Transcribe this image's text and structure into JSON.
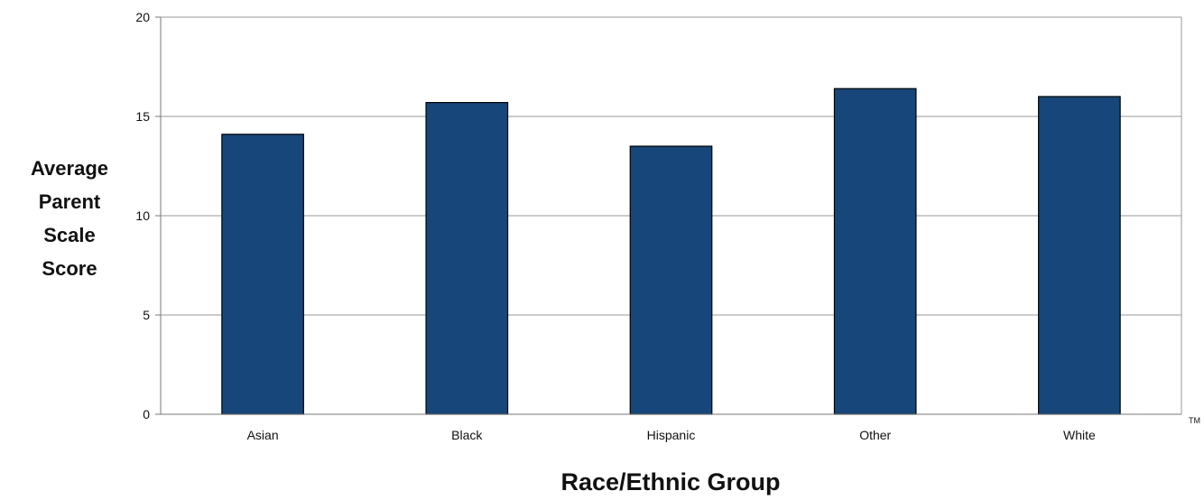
{
  "chart_data": {
    "type": "bar",
    "title": "",
    "xlabel": "Race/Ethnic Group",
    "ylabel_lines": [
      "Average",
      "Parent",
      "Scale",
      "Score"
    ],
    "categories": [
      "Asian",
      "Black",
      "Hispanic",
      "Other",
      "White"
    ],
    "values": [
      14.1,
      15.7,
      13.5,
      16.4,
      16.0
    ],
    "ylim": [
      0,
      20
    ],
    "yticks": [
      0,
      5,
      10,
      15,
      20
    ],
    "grid": true,
    "bar_color": "#17477a",
    "trademark": "TM"
  }
}
